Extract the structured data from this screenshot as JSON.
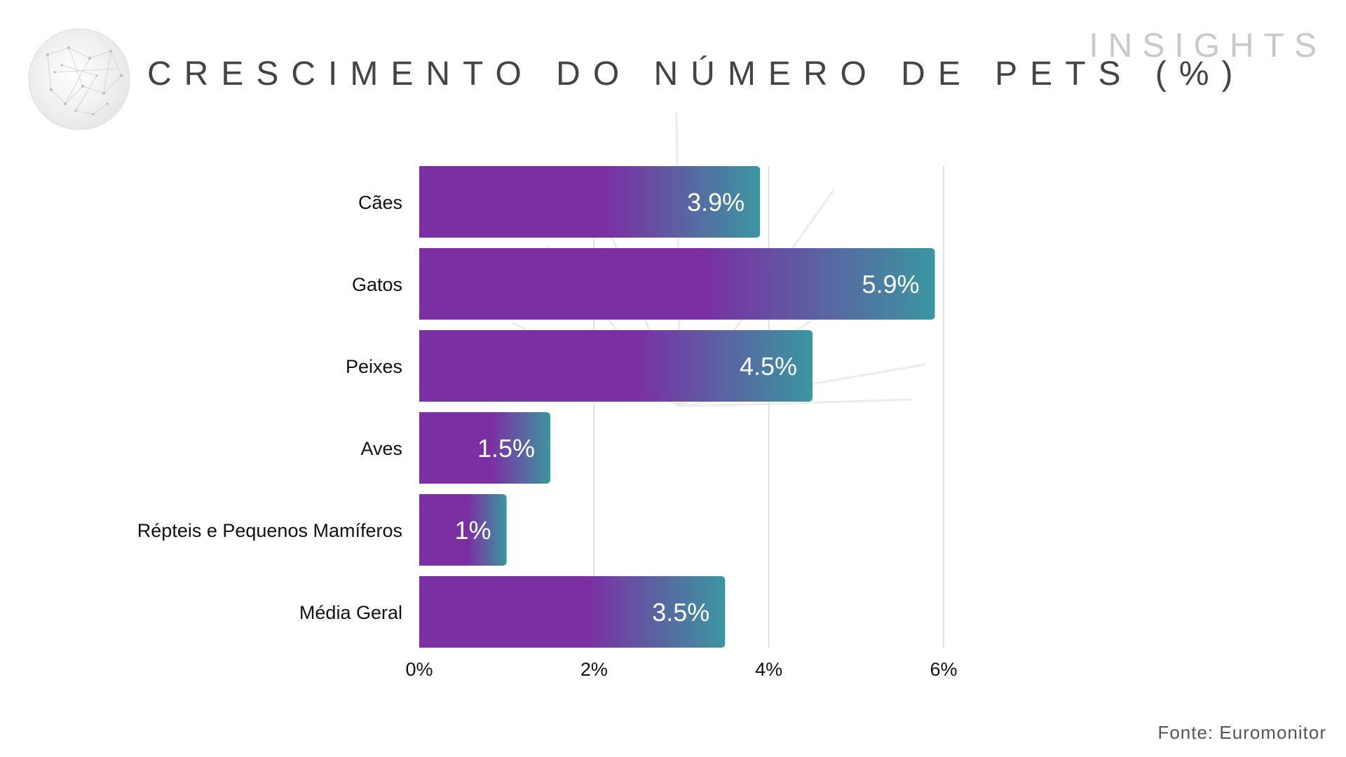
{
  "brand": "INSIGHTS",
  "title": "CRESCIMENTO DO NÚMERO DE PETS (%)",
  "source": "Fonte: Euromonitor",
  "colors": {
    "bar_start": "#7b2fa3",
    "bar_end": "#3b96a0",
    "grid": "#d9d9d9",
    "title": "#444444",
    "brand": "#c9c9c9"
  },
  "chart_data": {
    "type": "bar",
    "orientation": "horizontal",
    "categories": [
      "Cães",
      "Gatos",
      "Peixes",
      "Aves",
      "Répteis e Pequenos Mamíferos",
      "Média Geral"
    ],
    "values": [
      3.9,
      5.9,
      4.5,
      1.5,
      1.0,
      3.5
    ],
    "data_labels": [
      "3.9%",
      "5.9%",
      "4.5%",
      "1.5%",
      "1%",
      "3.5%"
    ],
    "x_ticks": [
      0,
      2,
      4,
      6
    ],
    "x_tick_labels": [
      "0%",
      "2%",
      "4%",
      "6%"
    ],
    "xlim": [
      0,
      6
    ],
    "grid": true,
    "legend": false
  }
}
